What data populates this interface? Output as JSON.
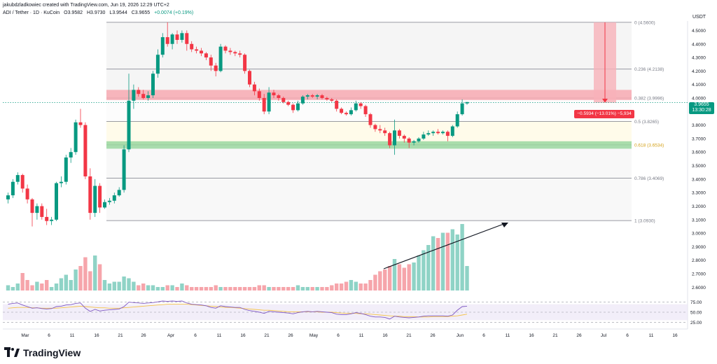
{
  "header": {
    "created_by": "jakubdzladkowiec created with TradingView.com, Jun 19, 2026 12:29 UTC+2",
    "symbol": "ADI / Tether · 1D · KuCoin",
    "o_label": "O",
    "o": "3.9582",
    "h_label": "H",
    "h": "3.9730",
    "l_label": "L",
    "l": "3.9544",
    "c_label": "C",
    "c": "3.9655",
    "change": "+0.0074 (+0.19%)"
  },
  "axis": {
    "currency": "USDT",
    "price_ticks": [
      "4.5000",
      "4.4000",
      "4.3000",
      "4.2000",
      "4.1000",
      "4.0000",
      "3.9000",
      "3.8000",
      "3.7000",
      "3.6000",
      "3.5000",
      "3.4000",
      "3.3000",
      "3.2000",
      "3.1000",
      "3.0000",
      "2.9000",
      "2.8000",
      "2.7000",
      "2.6000"
    ],
    "rsi_ticks": [
      "75.00",
      "50.00",
      "25.00"
    ],
    "date_ticks": [
      "Mar",
      "6",
      "11",
      "16",
      "21",
      "26",
      "Apr",
      "6",
      "11",
      "16",
      "21",
      "26",
      "May",
      "6",
      "11",
      "16",
      "21",
      "26",
      "Jun",
      "6",
      "11",
      "16",
      "21",
      "26",
      "Jul",
      "6",
      "11",
      "16"
    ]
  },
  "last_price": {
    "value": "3.9655",
    "countdown": "13:30:28"
  },
  "measure_label": "−0.5934 (−13.01%) −5,934",
  "logo_text": "TradingView",
  "colors": {
    "up": "#089981",
    "down": "#f23645",
    "rsi": "#7e57c2",
    "rsi_ma": "#f5c34a"
  },
  "chart_data": {
    "type": "candlestick",
    "fib_levels": [
      {
        "ratio": "0",
        "price": 4.56,
        "label": "0 (4.5600)"
      },
      {
        "ratio": "0.236",
        "price": 4.2138,
        "label": "0.236 (4.2138)"
      },
      {
        "ratio": "0.382",
        "price": 3.9996,
        "label": "0.382 (3.9996)"
      },
      {
        "ratio": "0.5",
        "price": 3.8265,
        "label": "0.5 (3.8265)"
      },
      {
        "ratio": "0.618",
        "price": 3.6534,
        "label": "0.618 (3.6534)"
      },
      {
        "ratio": "0.786",
        "price": 3.4069,
        "label": "0.786 (3.4069)"
      },
      {
        "ratio": "1",
        "price": 3.093,
        "label": "1 (3.0930)"
      }
    ],
    "ylim": [
      2.55,
      4.58
    ],
    "candles": [
      [
        3.25,
        3.3,
        3.22,
        3.28
      ],
      [
        3.28,
        3.4,
        3.26,
        3.38
      ],
      [
        3.38,
        3.45,
        3.36,
        3.43
      ],
      [
        3.43,
        3.44,
        3.3,
        3.33
      ],
      [
        3.33,
        3.36,
        3.22,
        3.25
      ],
      [
        3.25,
        3.26,
        3.05,
        3.15
      ],
      [
        3.15,
        3.22,
        3.1,
        3.2
      ],
      [
        3.2,
        3.22,
        3.1,
        3.12
      ],
      [
        3.12,
        3.18,
        3.06,
        3.09
      ],
      [
        3.09,
        3.12,
        3.06,
        3.1
      ],
      [
        3.1,
        3.38,
        3.09,
        3.37
      ],
      [
        3.37,
        3.42,
        3.34,
        3.38
      ],
      [
        3.38,
        3.58,
        3.36,
        3.56
      ],
      [
        3.56,
        3.63,
        3.52,
        3.6
      ],
      [
        3.6,
        3.84,
        3.58,
        3.82
      ],
      [
        3.82,
        3.92,
        3.78,
        3.8
      ],
      [
        3.8,
        3.82,
        3.4,
        3.42
      ],
      [
        3.42,
        3.48,
        3.1,
        3.15
      ],
      [
        3.15,
        3.4,
        3.12,
        3.35
      ],
      [
        3.35,
        3.37,
        3.15,
        3.19
      ],
      [
        3.19,
        3.25,
        3.18,
        3.23
      ],
      [
        3.23,
        3.26,
        3.21,
        3.24
      ],
      [
        3.24,
        3.3,
        3.22,
        3.28
      ],
      [
        3.28,
        3.34,
        3.27,
        3.32
      ],
      [
        3.32,
        3.65,
        3.3,
        3.62
      ],
      [
        3.62,
        4.18,
        3.6,
        3.98
      ],
      [
        3.98,
        4.1,
        3.92,
        4.06
      ],
      [
        4.06,
        4.08,
        4.01,
        4.03
      ],
      [
        4.03,
        4.06,
        3.99,
        4.0
      ],
      [
        4.0,
        4.05,
        3.98,
        4.02
      ],
      [
        4.02,
        4.2,
        4.0,
        4.18
      ],
      [
        4.18,
        4.36,
        4.15,
        4.32
      ],
      [
        4.32,
        4.48,
        4.3,
        4.45
      ],
      [
        4.45,
        4.56,
        4.38,
        4.4
      ],
      [
        4.4,
        4.48,
        4.36,
        4.47
      ],
      [
        4.47,
        4.5,
        4.4,
        4.43
      ],
      [
        4.43,
        4.5,
        4.41,
        4.48
      ],
      [
        4.48,
        4.5,
        4.35,
        4.4
      ],
      [
        4.4,
        4.42,
        4.34,
        4.36
      ],
      [
        4.36,
        4.38,
        4.33,
        4.35
      ],
      [
        4.35,
        4.37,
        4.31,
        4.33
      ],
      [
        4.33,
        4.34,
        4.28,
        4.3
      ],
      [
        4.3,
        4.32,
        4.2,
        4.24
      ],
      [
        4.24,
        4.26,
        4.16,
        4.2
      ],
      [
        4.2,
        4.4,
        4.19,
        4.38
      ],
      [
        4.38,
        4.39,
        4.33,
        4.35
      ],
      [
        4.35,
        4.37,
        4.32,
        4.34
      ],
      [
        4.34,
        4.35,
        4.31,
        4.33
      ],
      [
        4.33,
        4.35,
        4.3,
        4.32
      ],
      [
        4.32,
        4.33,
        4.18,
        4.2
      ],
      [
        4.2,
        4.21,
        4.08,
        4.1
      ],
      [
        4.1,
        4.12,
        4.02,
        4.05
      ],
      [
        4.05,
        4.07,
        3.98,
        4.0
      ],
      [
        4.0,
        4.03,
        3.88,
        3.9
      ],
      [
        3.9,
        4.08,
        3.88,
        4.04
      ],
      [
        4.04,
        4.06,
        4.0,
        4.02
      ],
      [
        4.02,
        4.03,
        3.98,
        4.0
      ],
      [
        4.0,
        4.01,
        3.96,
        3.97
      ],
      [
        3.97,
        3.98,
        3.94,
        3.95
      ],
      [
        3.95,
        3.96,
        3.89,
        3.91
      ],
      [
        3.91,
        3.98,
        3.9,
        3.96
      ],
      [
        3.96,
        4.02,
        3.95,
        4.01
      ],
      [
        4.01,
        4.03,
        3.99,
        4.02
      ],
      [
        4.02,
        4.03,
        4.0,
        4.01
      ],
      [
        4.01,
        4.03,
        3.99,
        4.02
      ],
      [
        4.02,
        4.03,
        3.99,
        4.0
      ],
      [
        4.0,
        4.01,
        3.98,
        3.99
      ],
      [
        3.99,
        4.0,
        3.97,
        3.98
      ],
      [
        3.98,
        3.99,
        3.9,
        3.92
      ],
      [
        3.92,
        3.93,
        3.88,
        3.89
      ],
      [
        3.89,
        3.9,
        3.87,
        3.88
      ],
      [
        3.88,
        3.93,
        3.87,
        3.91
      ],
      [
        3.91,
        3.98,
        3.9,
        3.96
      ],
      [
        3.96,
        3.97,
        3.92,
        3.94
      ],
      [
        3.94,
        3.95,
        3.86,
        3.88
      ],
      [
        3.88,
        3.89,
        3.78,
        3.8
      ],
      [
        3.8,
        3.81,
        3.75,
        3.77
      ],
      [
        3.77,
        3.8,
        3.74,
        3.76
      ],
      [
        3.76,
        3.78,
        3.72,
        3.74
      ],
      [
        3.74,
        3.75,
        3.63,
        3.65
      ],
      [
        3.65,
        3.84,
        3.58,
        3.76
      ],
      [
        3.76,
        3.77,
        3.7,
        3.72
      ],
      [
        3.72,
        3.73,
        3.67,
        3.7
      ],
      [
        3.7,
        3.71,
        3.63,
        3.67
      ],
      [
        3.67,
        3.69,
        3.65,
        3.68
      ],
      [
        3.68,
        3.71,
        3.67,
        3.7
      ],
      [
        3.7,
        3.75,
        3.69,
        3.73
      ],
      [
        3.73,
        3.76,
        3.72,
        3.74
      ],
      [
        3.74,
        3.76,
        3.72,
        3.75
      ],
      [
        3.75,
        3.77,
        3.73,
        3.74
      ],
      [
        3.74,
        3.76,
        3.73,
        3.75
      ],
      [
        3.75,
        3.76,
        3.68,
        3.72
      ],
      [
        3.72,
        3.8,
        3.71,
        3.79
      ],
      [
        3.79,
        3.9,
        3.78,
        3.88
      ],
      [
        3.88,
        3.99,
        3.87,
        3.96
      ],
      [
        3.96,
        3.97,
        3.95,
        3.97
      ]
    ],
    "volume": [
      3,
      2,
      4,
      10,
      6,
      3,
      5,
      4,
      6,
      2,
      4,
      7,
      9,
      6,
      12,
      14,
      19,
      11,
      20,
      15,
      6,
      4,
      5,
      5,
      8,
      7,
      5,
      3,
      4,
      3,
      3,
      2,
      2,
      3,
      3,
      2,
      4,
      3,
      2,
      2,
      2,
      2,
      2,
      3,
      2,
      2,
      2,
      2,
      2,
      2,
      2,
      2,
      3,
      3,
      2,
      2,
      2,
      2,
      2,
      2,
      3,
      2,
      2,
      2,
      2,
      2,
      2,
      3,
      4,
      4,
      5,
      6,
      5,
      4,
      4,
      6,
      9,
      11,
      12,
      14,
      18,
      15,
      13,
      15,
      16,
      20,
      23,
      26,
      31,
      30,
      33,
      33,
      35,
      32,
      38,
      14
    ],
    "rsi": [
      70,
      72,
      73,
      68,
      64,
      60,
      61,
      59,
      58,
      59,
      64,
      65,
      68,
      69,
      72,
      73,
      60,
      52,
      57,
      53,
      55,
      56,
      57,
      58,
      64,
      75,
      74,
      73,
      72,
      73,
      74,
      76,
      78,
      77,
      78,
      77,
      78,
      73,
      70,
      69,
      68,
      66,
      62,
      60,
      66,
      64,
      63,
      62,
      62,
      57,
      54,
      52,
      50,
      47,
      52,
      51,
      50,
      49,
      48,
      46,
      49,
      51,
      52,
      51,
      52,
      51,
      50,
      49,
      45,
      44,
      44,
      46,
      49,
      47,
      44,
      40,
      38,
      38,
      37,
      33,
      40,
      38,
      37,
      36,
      37,
      38,
      40,
      41,
      41,
      41,
      41,
      40,
      43,
      55,
      64,
      65
    ],
    "rsi_ma": [
      60,
      61,
      62,
      62,
      62,
      61,
      61,
      60,
      60,
      60,
      60,
      61,
      62,
      63,
      64,
      65,
      64,
      63,
      62,
      61,
      61,
      60,
      60,
      60,
      61,
      62,
      63,
      64,
      65,
      66,
      67,
      68,
      69,
      70,
      70,
      70,
      70,
      70,
      69,
      68,
      67,
      66,
      65,
      64,
      63,
      62,
      62,
      61,
      60,
      59,
      58,
      57,
      56,
      55,
      55,
      54,
      53,
      52,
      51,
      51,
      51,
      51,
      51,
      51,
      51,
      50,
      50,
      50,
      49,
      48,
      47,
      47,
      47,
      46,
      46,
      45,
      44,
      43,
      42,
      41,
      40,
      40,
      39,
      39,
      39,
      38,
      38,
      38,
      39,
      39,
      39,
      39,
      40,
      41,
      43,
      45
    ],
    "rsi_ticks": [
      75,
      50,
      25
    ]
  }
}
